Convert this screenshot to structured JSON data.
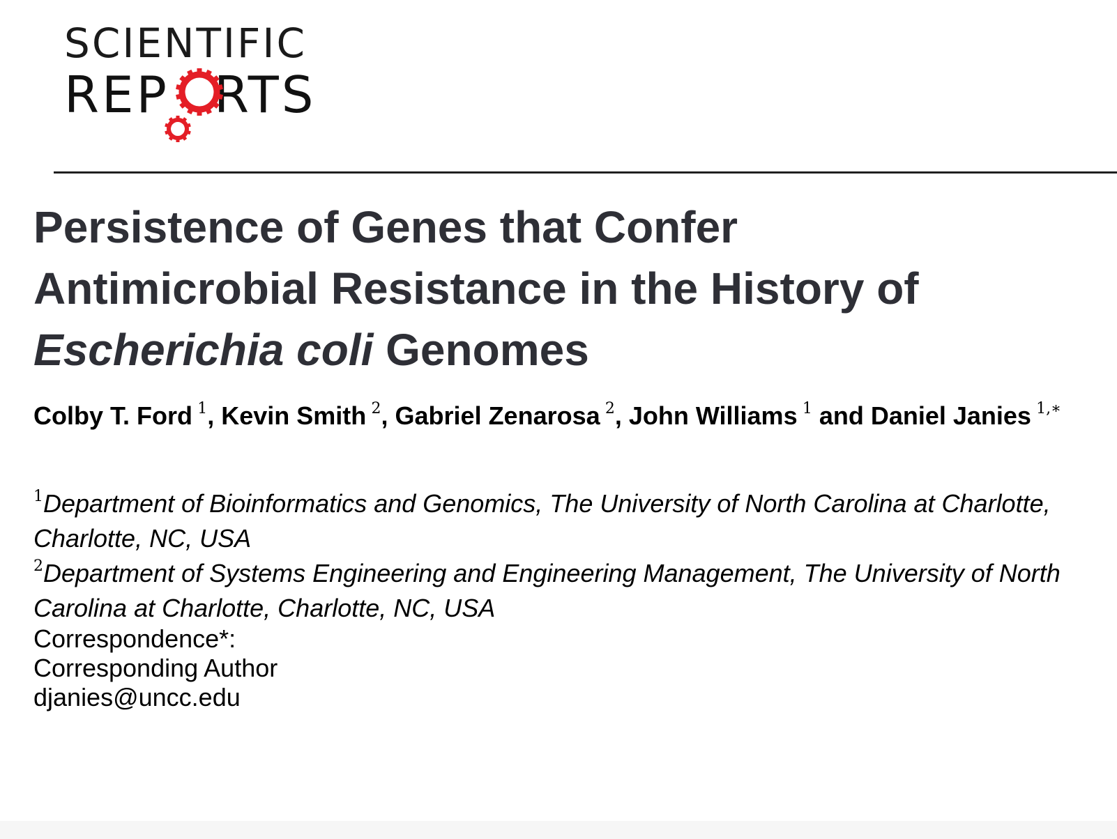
{
  "logo": {
    "line1": "SCIENTIFIC",
    "line2_left": "REP",
    "line2_right": "RTS",
    "gear_color": "#e41e26"
  },
  "title": {
    "line1": "Persistence of Genes that Confer",
    "line2": "Antimicrobial Resistance in the History of",
    "line3_italic": "Escherichia coli",
    "line3_rest": "Genomes"
  },
  "authors": [
    {
      "name": "Colby T. Ford",
      "sup": "1",
      "sep": ", "
    },
    {
      "name": "Kevin Smith",
      "sup": "2",
      "sep": ", "
    },
    {
      "name": "Gabriel Zenarosa",
      "sup": "2",
      "sep": ", "
    },
    {
      "name": "John Williams",
      "sup": "1",
      "sep": " and "
    },
    {
      "name": "Daniel Janies",
      "sup": "1,∗",
      "sep": ""
    }
  ],
  "affiliations": [
    {
      "sup": "1",
      "text": "Department of Bioinformatics and Genomics, The University of North Carolina at Charlotte, Charlotte, NC, USA"
    },
    {
      "sup": "2",
      "text": "Department of Systems Engineering and Engineering Management, The University of North Carolina at Charlotte, Charlotte, NC, USA"
    }
  ],
  "correspondence": {
    "heading": "Correspondence*:",
    "name": "Corresponding Author",
    "email": "djanies@uncc.edu"
  }
}
